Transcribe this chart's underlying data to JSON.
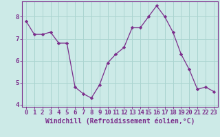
{
  "x": [
    0,
    1,
    2,
    3,
    4,
    5,
    6,
    7,
    8,
    9,
    10,
    11,
    12,
    13,
    14,
    15,
    16,
    17,
    18,
    19,
    20,
    21,
    22,
    23
  ],
  "y": [
    7.8,
    7.2,
    7.2,
    7.3,
    6.8,
    6.8,
    4.8,
    4.5,
    4.3,
    4.9,
    5.9,
    6.3,
    6.6,
    7.5,
    7.5,
    8.0,
    8.5,
    8.0,
    7.3,
    6.3,
    5.6,
    4.7,
    4.8,
    4.6
  ],
  "line_color": "#7b2d8b",
  "marker": "D",
  "marker_size": 2.2,
  "bg_color": "#cceae7",
  "grid_color": "#aad4d0",
  "xlabel": "Windchill (Refroidissement éolien,°C)",
  "ylim": [
    3.9,
    8.7
  ],
  "xlim": [
    -0.5,
    23.5
  ],
  "yticks": [
    4,
    5,
    6,
    7,
    8
  ],
  "xticks": [
    0,
    1,
    2,
    3,
    4,
    5,
    6,
    7,
    8,
    9,
    10,
    11,
    12,
    13,
    14,
    15,
    16,
    17,
    18,
    19,
    20,
    21,
    22,
    23
  ],
  "axis_color": "#7b2d8b",
  "tick_color": "#7b2d8b",
  "label_color": "#7b2d8b",
  "font_size_xlabel": 7.0,
  "font_size_ticks": 6.5
}
